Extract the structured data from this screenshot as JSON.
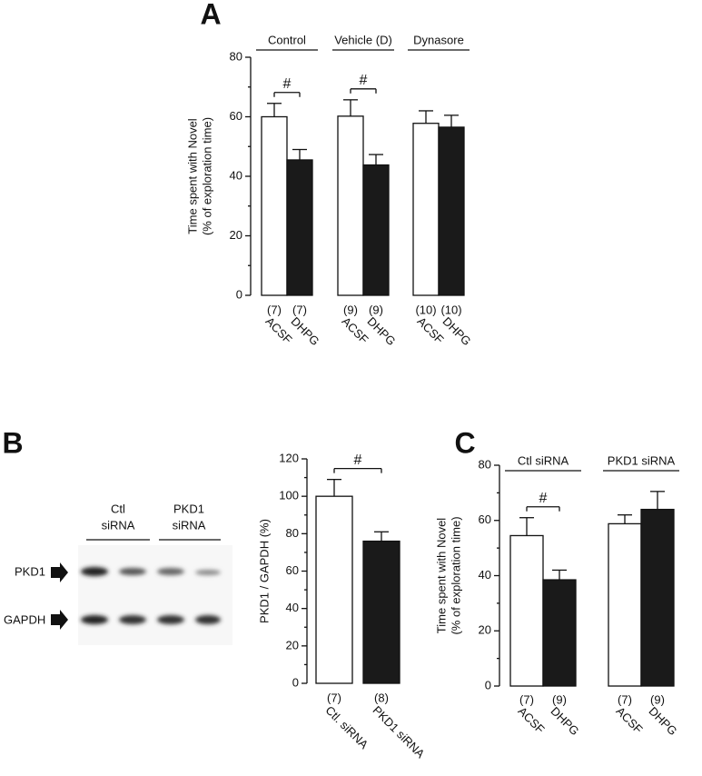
{
  "chart_data": [
    {
      "type": "bar",
      "panel": "A",
      "ylabel": [
        "Time spent with Novel",
        "(% of exploration time)"
      ],
      "categories": [
        "Control",
        "Vehicle  (D)",
        "Dynasore"
      ],
      "series": [
        {
          "name": "ACSF",
          "color": "#ffffff",
          "values": [
            60,
            60.2,
            57.8
          ],
          "errors": [
            4.5,
            5.5,
            4.2
          ],
          "n_labels": [
            "(7)",
            "(9)",
            "(10)"
          ]
        },
        {
          "name": "DHPG",
          "color": "#1a1a1a",
          "values": [
            45.5,
            43.8,
            56.5
          ],
          "errors": [
            3.5,
            3.5,
            4
          ],
          "n_labels": [
            "(7)",
            "(9)",
            "(10)"
          ]
        }
      ],
      "significance": [
        "#",
        "#",
        null
      ],
      "ylim": [
        0,
        80
      ],
      "yticks": [
        0,
        20,
        40,
        60,
        80
      ],
      "yminorticks": [
        10,
        30,
        50,
        70
      ]
    },
    {
      "type": "bar",
      "panel": "B",
      "ylabel": [
        "PKD1 / GAPDH (%)"
      ],
      "categories": [
        "Ctl. siRNA",
        "PKD1 siRNA"
      ],
      "values": [
        100,
        76
      ],
      "errors": [
        9,
        5
      ],
      "colors": [
        "#ffffff",
        "#1a1a1a"
      ],
      "n_labels": [
        "(7)",
        "(8)"
      ],
      "significance": "#",
      "ylim": [
        0,
        120
      ],
      "yticks": [
        0,
        20,
        40,
        60,
        80,
        100,
        120
      ],
      "yminorticks": [
        10,
        30,
        50,
        70,
        90,
        110
      ]
    },
    {
      "type": "bar",
      "panel": "C",
      "ylabel": [
        "Time spent with Novel",
        "(% of exploration time)"
      ],
      "categories": [
        "Ctl siRNA",
        "PKD1 siRNA"
      ],
      "series": [
        {
          "name": "ACSF",
          "color": "#ffffff",
          "values": [
            54.5,
            58.8
          ],
          "errors": [
            6.5,
            3.2
          ],
          "n_labels": [
            "(7)",
            "(7)"
          ]
        },
        {
          "name": "DHPG",
          "color": "#1a1a1a",
          "values": [
            38.5,
            64
          ],
          "errors": [
            3.5,
            6.5
          ],
          "n_labels": [
            "(9)",
            "(9)"
          ]
        }
      ],
      "significance": [
        "#",
        null
      ],
      "ylim": [
        0,
        80
      ],
      "yticks": [
        0,
        20,
        40,
        60,
        80
      ],
      "yminorticks": [
        10,
        30,
        50,
        70
      ]
    }
  ],
  "blot": {
    "columns": [
      [
        "Ctl",
        "siRNA"
      ],
      [
        "PKD1",
        "siRNA"
      ]
    ],
    "rows": [
      "PKD1",
      "GAPDH"
    ]
  }
}
